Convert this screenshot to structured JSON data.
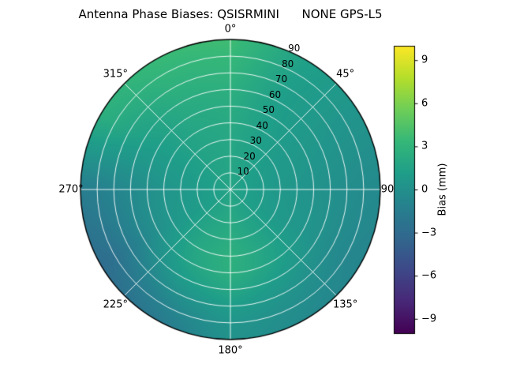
{
  "chart_data": {
    "type": "heatmap",
    "projection": "polar",
    "title": "Antenna Phase Biases: QSISRMINI      NONE GPS-L5",
    "angular_ticks": [
      {
        "angle_deg": 0,
        "label": "0°"
      },
      {
        "angle_deg": 45,
        "label": "45°"
      },
      {
        "angle_deg": 90,
        "label": "90"
      },
      {
        "angle_deg": 135,
        "label": "135°"
      },
      {
        "angle_deg": 180,
        "label": "180°"
      },
      {
        "angle_deg": 225,
        "label": "225°"
      },
      {
        "angle_deg": 270,
        "label": "270°"
      },
      {
        "angle_deg": 315,
        "label": "315°"
      }
    ],
    "radial_ticks": [
      {
        "value": 10,
        "label": "10"
      },
      {
        "value": 20,
        "label": "20"
      },
      {
        "value": 30,
        "label": "30"
      },
      {
        "value": 40,
        "label": "40"
      },
      {
        "value": 50,
        "label": "50"
      },
      {
        "value": 60,
        "label": "60"
      },
      {
        "value": 70,
        "label": "70"
      },
      {
        "value": 80,
        "label": "80"
      },
      {
        "value": 90,
        "label": "90"
      }
    ],
    "azimuth_deg": [
      0,
      30,
      60,
      90,
      120,
      150,
      180,
      210,
      240,
      270,
      300,
      330
    ],
    "zenith_deg": [
      0,
      10,
      20,
      30,
      40,
      50,
      60,
      70,
      80,
      90
    ],
    "values": [
      [
        1.6,
        1.6,
        1.6,
        1.6,
        1.6,
        1.6,
        1.6,
        1.6,
        1.6,
        1.6,
        1.6,
        1.6
      ],
      [
        1.7,
        1.5,
        1.2,
        1.1,
        1.2,
        1.5,
        1.9,
        1.6,
        1.2,
        1.1,
        1.3,
        1.6
      ],
      [
        1.8,
        1.4,
        1.0,
        0.9,
        1.0,
        1.5,
        2.1,
        1.7,
        1.0,
        0.9,
        1.2,
        1.6
      ],
      [
        1.9,
        1.3,
        0.8,
        0.6,
        0.8,
        1.6,
        2.4,
        1.8,
        0.8,
        0.6,
        1.1,
        1.7
      ],
      [
        2.1,
        1.2,
        0.7,
        0.4,
        0.6,
        1.7,
        2.7,
        1.9,
        0.5,
        0.3,
        1.1,
        1.8
      ],
      [
        2.3,
        1.1,
        0.6,
        0.2,
        0.4,
        1.5,
        2.6,
        1.6,
        0.0,
        -0.1,
        1.1,
        2.0
      ],
      [
        2.6,
        1.1,
        0.5,
        0.0,
        0.1,
        0.9,
        1.9,
        0.9,
        -0.8,
        -0.5,
        1.3,
        2.3
      ],
      [
        3.0,
        1.1,
        0.4,
        -0.2,
        -0.4,
        0.3,
        1.0,
        -0.1,
        -1.7,
        -0.9,
        1.7,
        2.7
      ],
      [
        3.4,
        1.2,
        0.3,
        -0.4,
        -0.7,
        -0.2,
        0.4,
        -1.1,
        -2.5,
        -1.3,
        2.2,
        3.1
      ],
      [
        3.8,
        1.3,
        0.3,
        -0.5,
        -0.9,
        -0.5,
        0.2,
        -1.9,
        -3.0,
        -1.5,
        2.6,
        3.5
      ]
    ],
    "colormap": {
      "name": "viridis",
      "stops": [
        "#440154",
        "#482878",
        "#3e4989",
        "#31688e",
        "#26828e",
        "#1f9e89",
        "#35b779",
        "#6ece58",
        "#b5de2b",
        "#fde725"
      ]
    },
    "colorbar": {
      "label": "Bias (mm)",
      "vmin": -10,
      "vmax": 10,
      "ticks": [
        {
          "value": 9,
          "label": "9"
        },
        {
          "value": 6,
          "label": "6"
        },
        {
          "value": 3,
          "label": "3"
        },
        {
          "value": 0,
          "label": "0"
        },
        {
          "value": -3,
          "label": "−3"
        },
        {
          "value": -6,
          "label": "−6"
        },
        {
          "value": -9,
          "label": "−9"
        }
      ]
    },
    "grid_color": "rgba(255,255,255,0.9)",
    "outline_color": "#000000"
  }
}
